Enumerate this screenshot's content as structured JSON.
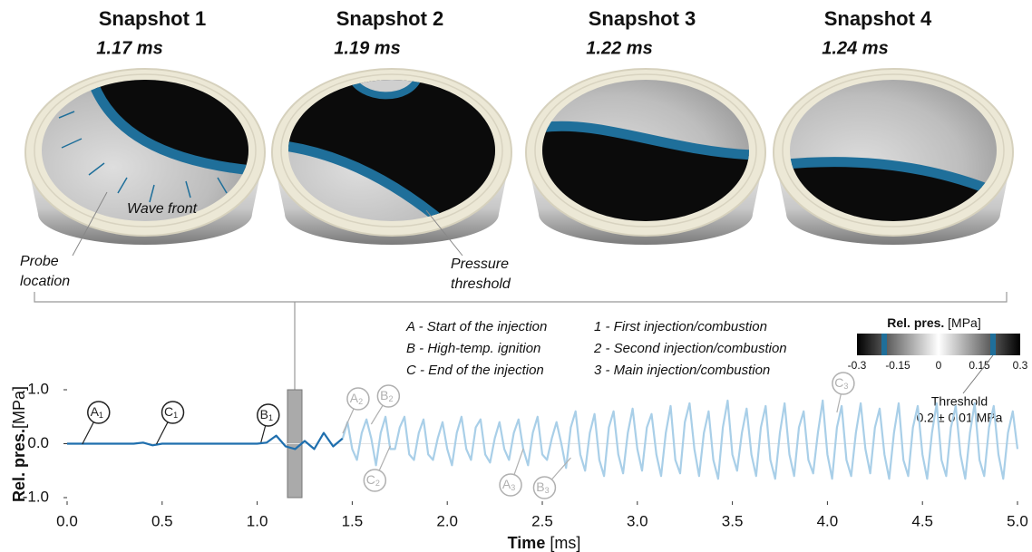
{
  "snapshots": [
    {
      "title": "Snapshot 1",
      "time": "1.17 ms"
    },
    {
      "title": "Snapshot 2",
      "time": "1.19 ms"
    },
    {
      "title": "Snapshot 3",
      "time": "1.22 ms"
    },
    {
      "title": "Snapshot 4",
      "time": "1.24 ms"
    }
  ],
  "snapshot_labels": {
    "wave_front": "Wave front",
    "probe_location": [
      "Probe",
      "location"
    ],
    "pressure_threshold": [
      "Pressure",
      "threshold"
    ]
  },
  "legend": {
    "letters": [
      "A - Start of the injection",
      "B - High-temp. ignition",
      "C - End of the injection"
    ],
    "numbers": [
      "1 - First injection/combustion",
      "2 - Second injection/combustion",
      "3 - Main injection/combustion"
    ]
  },
  "colorbar": {
    "title": "Rel. pres.",
    "unit": "[MPa]",
    "lim": [
      -0.3,
      0.3
    ],
    "ticks": [
      -0.3,
      -0.15,
      0,
      0.15,
      0.3
    ],
    "threshold": 0.2,
    "threshold_color": "#1f6f9a",
    "threshold_label": "Threshold",
    "threshold_value": "0.2 ± 0.01 MPa"
  },
  "chart_data": {
    "type": "line",
    "xlabel": "Time",
    "xunit": "[ms]",
    "ylabel": "Rel. pres.",
    "yunit": "[MPa]",
    "xlim": [
      0,
      5
    ],
    "ylim": [
      -1,
      1
    ],
    "xticks": [
      {
        "value": 0,
        "label": "0.0"
      },
      0.5,
      {
        "value": 1,
        "label": "1.0"
      },
      1.5,
      {
        "value": 2,
        "label": "2.0"
      },
      2.5,
      {
        "value": 3,
        "label": "3.0"
      },
      3.5,
      {
        "value": 4,
        "label": "4.0"
      },
      4.5,
      {
        "value": 5,
        "label": "5.0"
      }
    ],
    "yticks": [
      {
        "value": 1,
        "label": "1.0"
      },
      {
        "value": 0,
        "label": "0.0"
      },
      {
        "value": -1,
        "label": "-1.0"
      }
    ],
    "series": [
      {
        "color": "#1f6fae",
        "x": [
          0,
          0.05,
          0.1,
          0.15,
          0.2,
          0.25,
          0.3,
          0.35,
          0.4,
          0.45,
          0.5,
          0.55,
          0.6,
          0.65,
          0.7,
          0.75,
          0.8,
          0.85,
          0.9,
          0.95,
          1.0,
          1.05,
          1.1,
          1.15,
          1.2,
          1.25,
          1.3,
          1.35,
          1.4,
          1.45
        ],
        "values": [
          0,
          0,
          0,
          0,
          0,
          0,
          0,
          0,
          0.02,
          -0.03,
          0,
          0,
          0,
          0,
          0,
          0,
          0,
          0,
          0,
          0,
          0,
          0.02,
          0.15,
          -0.05,
          -0.1,
          0.05,
          -0.1,
          0.2,
          -0.05,
          0.1
        ]
      },
      {
        "color": "#a9cfe8",
        "x": [
          1.45,
          1.475,
          1.5,
          1.525,
          1.55,
          1.575,
          1.6,
          1.625,
          1.65,
          1.675,
          1.7,
          1.725,
          1.75,
          1.775,
          1.8,
          1.825,
          1.85,
          1.875,
          1.9,
          1.925,
          1.95,
          1.975,
          2.0,
          2.025,
          2.05,
          2.075,
          2.1,
          2.125,
          2.15,
          2.175,
          2.2,
          2.225,
          2.25,
          2.275,
          2.3,
          2.325,
          2.35,
          2.375,
          2.4,
          2.425,
          2.45,
          2.475,
          2.5,
          2.525,
          2.55,
          2.575,
          2.6,
          2.625,
          2.65,
          2.675,
          2.7,
          2.725,
          2.75,
          2.775,
          2.8,
          2.825,
          2.85,
          2.875,
          2.9,
          2.925,
          2.95,
          2.975,
          3.0,
          3.025,
          3.05,
          3.075,
          3.1,
          3.125,
          3.15,
          3.175,
          3.2,
          3.225,
          3.25,
          3.275,
          3.3,
          3.325,
          3.35,
          3.375,
          3.4,
          3.425,
          3.45,
          3.475,
          3.5,
          3.525,
          3.55,
          3.575,
          3.6,
          3.625,
          3.65,
          3.675,
          3.7,
          3.725,
          3.75,
          3.775,
          3.8,
          3.825,
          3.85,
          3.875,
          3.9,
          3.925,
          3.95,
          3.975,
          4.0,
          4.025,
          4.05,
          4.075,
          4.1,
          4.125,
          4.15,
          4.175,
          4.2,
          4.225,
          4.25,
          4.275,
          4.3,
          4.325,
          4.35,
          4.375,
          4.4,
          4.425,
          4.45,
          4.475,
          4.5,
          4.525,
          4.55,
          4.575,
          4.6,
          4.625,
          4.65,
          4.675,
          4.7,
          4.725,
          4.75,
          4.775,
          4.8,
          4.825,
          4.85,
          4.875,
          4.9,
          4.925,
          4.95,
          4.975,
          5.0
        ],
        "values": [
          0.1,
          0.4,
          -0.1,
          -0.3,
          0.2,
          0.45,
          0.1,
          -0.4,
          0.2,
          0.5,
          -0.1,
          -0.1,
          0.3,
          0.5,
          -0.2,
          -0.3,
          0.2,
          0.45,
          -0.2,
          -0.3,
          0.1,
          0.4,
          -0.1,
          -0.4,
          0.2,
          0.5,
          -0.1,
          -0.3,
          0.3,
          0.45,
          -0.2,
          -0.35,
          0.1,
          0.4,
          -0.1,
          -0.3,
          0.2,
          0.45,
          -0.1,
          -0.4,
          0.2,
          0.5,
          -0.2,
          -0.3,
          0.1,
          0.4,
          0.0,
          -0.45,
          0.3,
          0.6,
          -0.2,
          -0.5,
          0.2,
          0.55,
          -0.3,
          -0.6,
          0.3,
          0.6,
          -0.2,
          -0.55,
          0.2,
          0.65,
          -0.1,
          -0.5,
          0.3,
          0.55,
          -0.2,
          -0.6,
          0.2,
          0.7,
          -0.3,
          -0.55,
          0.4,
          0.75,
          -0.1,
          -0.6,
          0.2,
          0.6,
          -0.3,
          -0.65,
          0.3,
          0.8,
          -0.2,
          -0.5,
          0.2,
          0.65,
          -0.2,
          -0.6,
          0.3,
          0.7,
          -0.3,
          -0.65,
          0.2,
          0.75,
          -0.2,
          -0.6,
          0.3,
          0.6,
          -0.3,
          -0.55,
          0.2,
          0.8,
          -0.2,
          -0.65,
          0.3,
          0.7,
          -0.3,
          -0.6,
          0.2,
          0.75,
          -0.1,
          -0.55,
          0.3,
          0.65,
          -0.2,
          -0.65,
          0.2,
          0.75,
          -0.3,
          -0.6,
          0.3,
          0.7,
          -0.2,
          -0.65,
          0.2,
          0.75,
          -0.3,
          -0.6,
          0.3,
          0.7,
          -0.2,
          -0.65,
          0.2,
          0.75,
          -0.3,
          -0.6,
          0.3,
          0.7,
          -0.2,
          -0.65,
          0.2,
          0.6,
          -0.1
        ]
      }
    ],
    "markers": [
      {
        "letter": "A",
        "index": "1",
        "x": 0.08,
        "color": "#222222"
      },
      {
        "letter": "C",
        "index": "1",
        "x": 0.47,
        "color": "#222222"
      },
      {
        "letter": "B",
        "index": "1",
        "x": 1.02,
        "color": "#222222"
      },
      {
        "letter": "A",
        "index": "2",
        "x": 1.45,
        "color": "#b0b0b0"
      },
      {
        "letter": "B",
        "index": "2",
        "x": 1.6,
        "color": "#b0b0b0"
      },
      {
        "letter": "C",
        "index": "2",
        "x": 1.7,
        "color": "#b0b0b0"
      },
      {
        "letter": "A",
        "index": "3",
        "x": 2.4,
        "color": "#b0b0b0"
      },
      {
        "letter": "B",
        "index": "3",
        "x": 2.65,
        "color": "#b0b0b0"
      },
      {
        "letter": "C",
        "index": "3",
        "x": 4.05,
        "color": "#b0b0b0"
      }
    ]
  }
}
